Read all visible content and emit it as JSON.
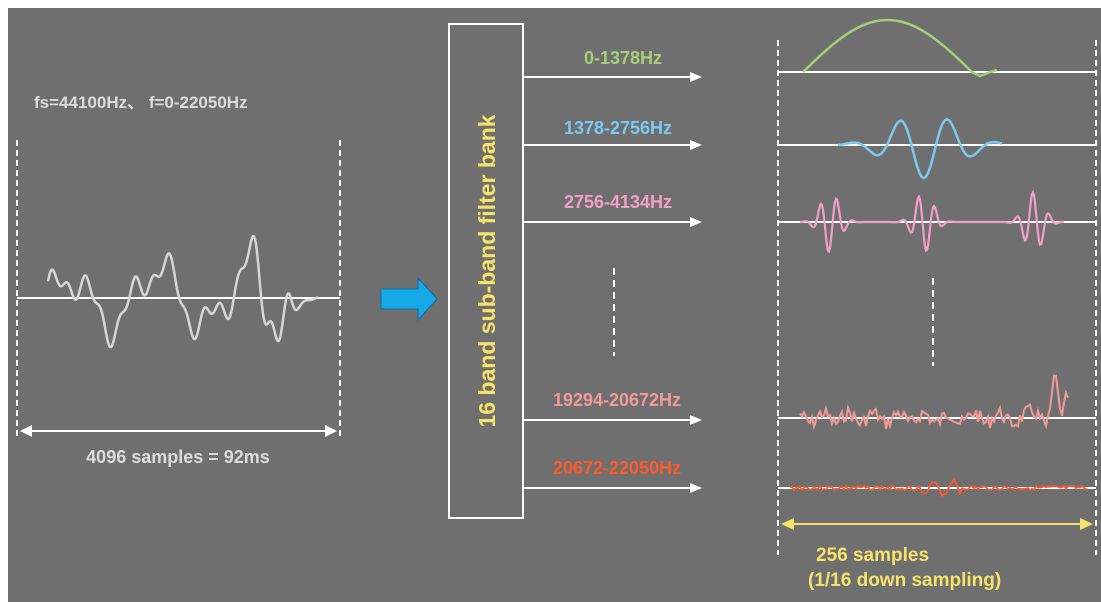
{
  "input": {
    "header": "fs=44100Hz、 f=0-22050Hz",
    "duration_label": "4096 samples = 92ms"
  },
  "filter_bank": {
    "label": "16 band sub-band filter bank"
  },
  "bands": [
    {
      "label": "0-1378Hz",
      "color": "#a6cf78"
    },
    {
      "label": "1378-2756Hz",
      "color": "#7ccaf0"
    },
    {
      "label": "2756-4134Hz",
      "color": "#f2a1c4"
    },
    {
      "label": "19294-20672Hz",
      "color": "#f29a9a"
    },
    {
      "label": "20672-22050Hz",
      "color": "#ff5a2b"
    }
  ],
  "output": {
    "samples_label": "256 samples",
    "note_label": "(1/16 down sampling)"
  },
  "colors": {
    "background": "#6f6f6f",
    "line": "#ffffff",
    "input_wave": "#d6d6d6",
    "filter_label": "#f5e36a",
    "output_label": "#f5e36a",
    "arrow": "#16a9e8"
  }
}
